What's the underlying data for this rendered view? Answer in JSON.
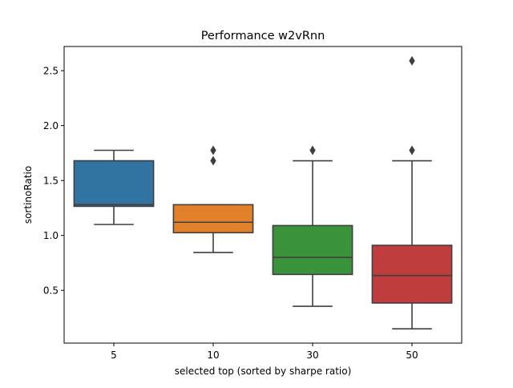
{
  "chart_data": {
    "type": "box",
    "title": "Performance w2vRnn",
    "xlabel": "selected top (sorted by sharpe ratio)",
    "ylabel": "sortinoRatio",
    "ylim": [
      0.02,
      2.72
    ],
    "yticks": [
      0.5,
      1.0,
      1.5,
      2.0,
      2.5
    ],
    "ytick_labels": [
      "0.5",
      "1.0",
      "1.5",
      "2.0",
      "2.5"
    ],
    "grid": false,
    "legend": "none",
    "categories": [
      "5",
      "10",
      "30",
      "50"
    ],
    "boxes": [
      {
        "category": "5",
        "color": "#3274a1",
        "whisker_low": 1.1,
        "q1": 1.265,
        "median": 1.28,
        "q3": 1.68,
        "whisker_high": 1.775,
        "outliers": []
      },
      {
        "category": "10",
        "color": "#e1812c",
        "whisker_low": 0.845,
        "q1": 1.025,
        "median": 1.12,
        "q3": 1.28,
        "whisker_high": 1.28,
        "outliers": [
          1.68,
          1.775
        ]
      },
      {
        "category": "30",
        "color": "#3a923a",
        "whisker_low": 0.355,
        "q1": 0.645,
        "median": 0.8,
        "q3": 1.09,
        "whisker_high": 1.68,
        "outliers": [
          1.775
        ]
      },
      {
        "category": "50",
        "color": "#c03d3e",
        "whisker_low": 0.15,
        "q1": 0.385,
        "median": 0.635,
        "q3": 0.91,
        "whisker_high": 1.68,
        "outliers": [
          1.775,
          2.59
        ]
      }
    ]
  }
}
